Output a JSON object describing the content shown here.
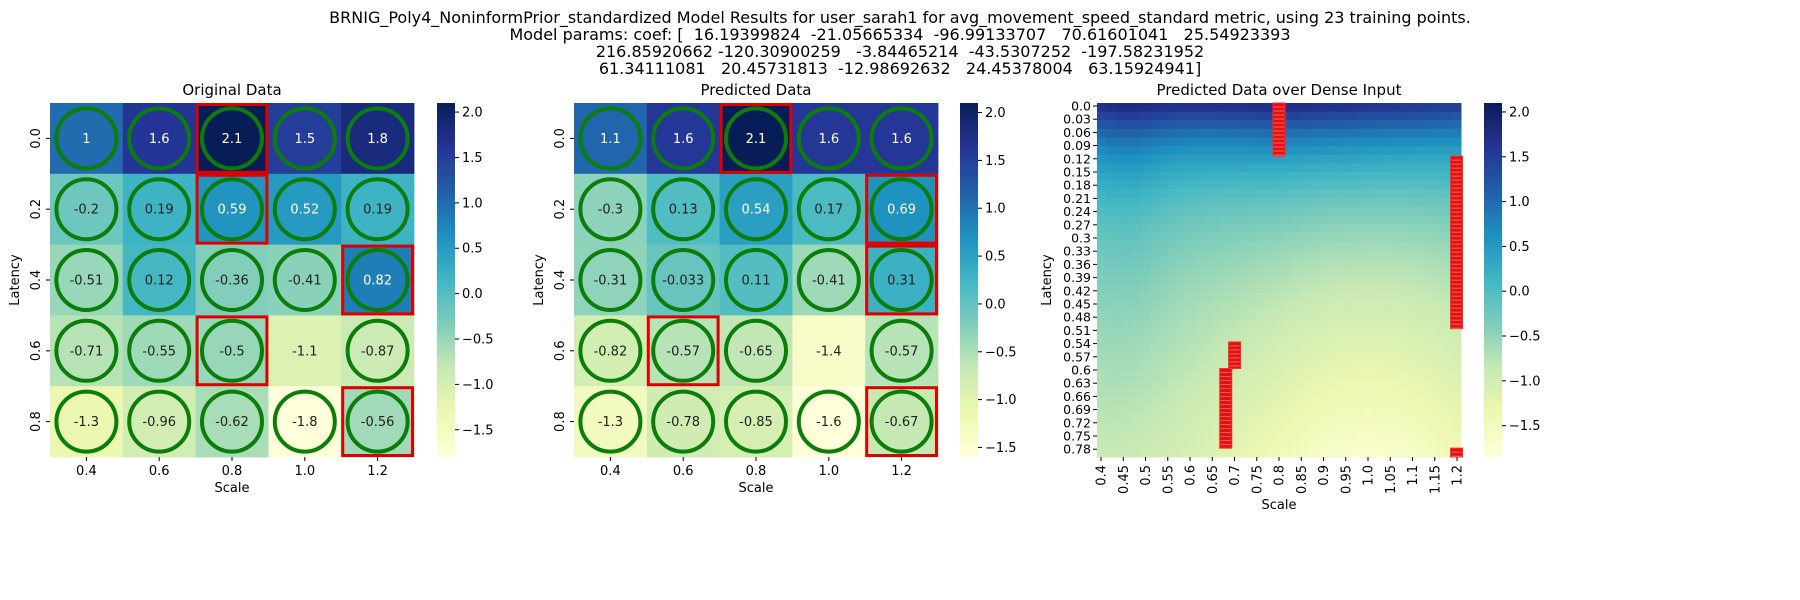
{
  "suptitle": {
    "line1": "BRNIG_Poly4_NoninformPrior_standardized Model Results for user_sarah1 for avg_movement_speed_standard metric, using 23 training points.",
    "line2": "Model params: coef: [  16.19399824  -21.05665334  -96.99133707   70.61601041   25.54923393",
    "line3": "216.85920662 -120.30900259   -3.84465214  -43.5307252  -197.58231952",
    "line4": "61.34111081   20.45731813  -12.98692632   24.45378004   63.15924941]"
  },
  "chart_data": [
    {
      "type": "heatmap",
      "title": "Original Data",
      "xlabel": "Scale",
      "ylabel": "Latency",
      "x_ticks": [
        "0.4",
        "0.6",
        "0.8",
        "1.0",
        "1.2"
      ],
      "y_ticks": [
        "0.0",
        "0.2",
        "0.4",
        "0.6",
        "0.8"
      ],
      "values": [
        [
          1,
          1.6,
          2.1,
          1.5,
          1.8
        ],
        [
          -0.2,
          0.19,
          0.59,
          0.52,
          0.19
        ],
        [
          -0.51,
          0.12,
          -0.36,
          -0.41,
          0.82
        ],
        [
          -0.71,
          -0.55,
          -0.5,
          -1.1,
          -0.87
        ],
        [
          -1.3,
          -0.96,
          -0.62,
          -1.8,
          -0.56
        ]
      ],
      "labels": [
        [
          "1",
          "1.6",
          "2.1",
          "1.5",
          "1.8"
        ],
        [
          "-0.2",
          "0.19",
          "0.59",
          "0.52",
          "0.19"
        ],
        [
          "-0.51",
          "0.12",
          "-0.36",
          "-0.41",
          "0.82"
        ],
        [
          "-0.71",
          "-0.55",
          "-0.5",
          "-1.1",
          "-0.87"
        ],
        [
          "-1.3",
          "-0.96",
          "-0.62",
          "-1.8",
          "-0.56"
        ]
      ],
      "circles": [
        [
          1,
          1,
          1,
          1,
          1
        ],
        [
          1,
          1,
          1,
          1,
          1
        ],
        [
          1,
          1,
          1,
          1,
          1
        ],
        [
          1,
          1,
          1,
          0,
          1
        ],
        [
          1,
          1,
          1,
          1,
          1
        ]
      ],
      "boxes": [
        [
          0,
          2
        ],
        [
          1,
          2
        ],
        [
          2,
          4
        ],
        [
          3,
          2
        ],
        [
          4,
          4
        ]
      ],
      "colorbar": {
        "min": -1.8,
        "max": 2.1,
        "ticks": [
          "2.0",
          "1.5",
          "1.0",
          "0.5",
          "0.0",
          "−0.5",
          "−1.0",
          "−1.5"
        ],
        "tick_values": [
          2.0,
          1.5,
          1.0,
          0.5,
          0.0,
          -0.5,
          -1.0,
          -1.5
        ]
      }
    },
    {
      "type": "heatmap",
      "title": "Predicted Data",
      "xlabel": "Scale",
      "ylabel": "Latency",
      "x_ticks": [
        "0.4",
        "0.6",
        "0.8",
        "1.0",
        "1.2"
      ],
      "y_ticks": [
        "0.0",
        "0.2",
        "0.4",
        "0.6",
        "0.8"
      ],
      "values": [
        [
          1.1,
          1.6,
          2.1,
          1.6,
          1.6
        ],
        [
          -0.3,
          0.13,
          0.54,
          0.17,
          0.69
        ],
        [
          -0.31,
          -0.033,
          0.11,
          -0.41,
          0.31
        ],
        [
          -0.82,
          -0.57,
          -0.65,
          -1.4,
          -0.57
        ],
        [
          -1.3,
          -0.78,
          -0.85,
          -1.6,
          -0.67
        ]
      ],
      "labels": [
        [
          "1.1",
          "1.6",
          "2.1",
          "1.6",
          "1.6"
        ],
        [
          "-0.3",
          "0.13",
          "0.54",
          "0.17",
          "0.69"
        ],
        [
          "-0.31",
          "-0.033",
          "0.11",
          "-0.41",
          "0.31"
        ],
        [
          "-0.82",
          "-0.57",
          "-0.65",
          "-1.4",
          "-0.57"
        ],
        [
          "-1.3",
          "-0.78",
          "-0.85",
          "-1.6",
          "-0.67"
        ]
      ],
      "circles": [
        [
          1,
          1,
          1,
          1,
          1
        ],
        [
          1,
          1,
          1,
          1,
          1
        ],
        [
          1,
          1,
          1,
          1,
          1
        ],
        [
          1,
          1,
          1,
          0,
          1
        ],
        [
          1,
          1,
          1,
          1,
          1
        ]
      ],
      "boxes": [
        [
          0,
          2
        ],
        [
          1,
          4
        ],
        [
          2,
          4
        ],
        [
          3,
          1
        ],
        [
          4,
          4
        ]
      ],
      "colorbar": {
        "min": -1.6,
        "max": 2.1,
        "ticks": [
          "2.0",
          "1.5",
          "1.0",
          "0.5",
          "0.0",
          "−0.5",
          "−1.0",
          "−1.5"
        ],
        "tick_values": [
          2.0,
          1.5,
          1.0,
          0.5,
          0.0,
          -0.5,
          -1.0,
          -1.5
        ]
      }
    },
    {
      "type": "heatmap",
      "title": "Predicted Data over Dense Input",
      "xlabel": "Scale",
      "ylabel": "Latency",
      "x_ticks": [
        "0.4",
        "0.45",
        "0.5",
        "0.55",
        "0.6",
        "0.65",
        "0.7",
        "0.75",
        "0.8",
        "0.85",
        "0.9",
        "0.95",
        "1.0",
        "1.05",
        "1.1",
        "1.15",
        "1.2"
      ],
      "y_ticks": [
        "0.0",
        "0.03",
        "0.06",
        "0.09",
        "0.12",
        "0.15",
        "0.18",
        "0.21",
        "0.24",
        "0.27",
        "0.3",
        "0.33",
        "0.36",
        "0.39",
        "0.42",
        "0.45",
        "0.48",
        "0.51",
        "0.54",
        "0.57",
        "0.6",
        "0.63",
        "0.66",
        "0.69",
        "0.72",
        "0.75",
        "0.78"
      ],
      "x_range": [
        0.4,
        1.2
      ],
      "y_range": [
        0.0,
        0.8
      ],
      "surface_summary": "smooth field: high (~2) along top rows, fading to ~0 around 0.2-0.3 latency, lowest (~-1.8) near scale 1.0 at latency 0.8",
      "red_marker_bands": [
        {
          "scale": 0.8,
          "latency_from": 0.0,
          "latency_to": 0.12
        },
        {
          "scale": 1.2,
          "latency_from": 0.12,
          "latency_to": 0.51
        },
        {
          "scale": 0.7,
          "latency_from": 0.54,
          "latency_to": 0.6
        },
        {
          "scale": 0.68,
          "latency_from": 0.6,
          "latency_to": 0.78
        },
        {
          "scale": 1.2,
          "latency_from": 0.78,
          "latency_to": 0.8
        }
      ],
      "colorbar": {
        "min": -1.85,
        "max": 2.1,
        "ticks": [
          "2.0",
          "1.5",
          "1.0",
          "0.5",
          "0.0",
          "−0.5",
          "−1.0",
          "−1.5"
        ],
        "tick_values": [
          2.0,
          1.5,
          1.0,
          0.5,
          0.0,
          -0.5,
          -1.0,
          -1.5
        ]
      }
    }
  ]
}
